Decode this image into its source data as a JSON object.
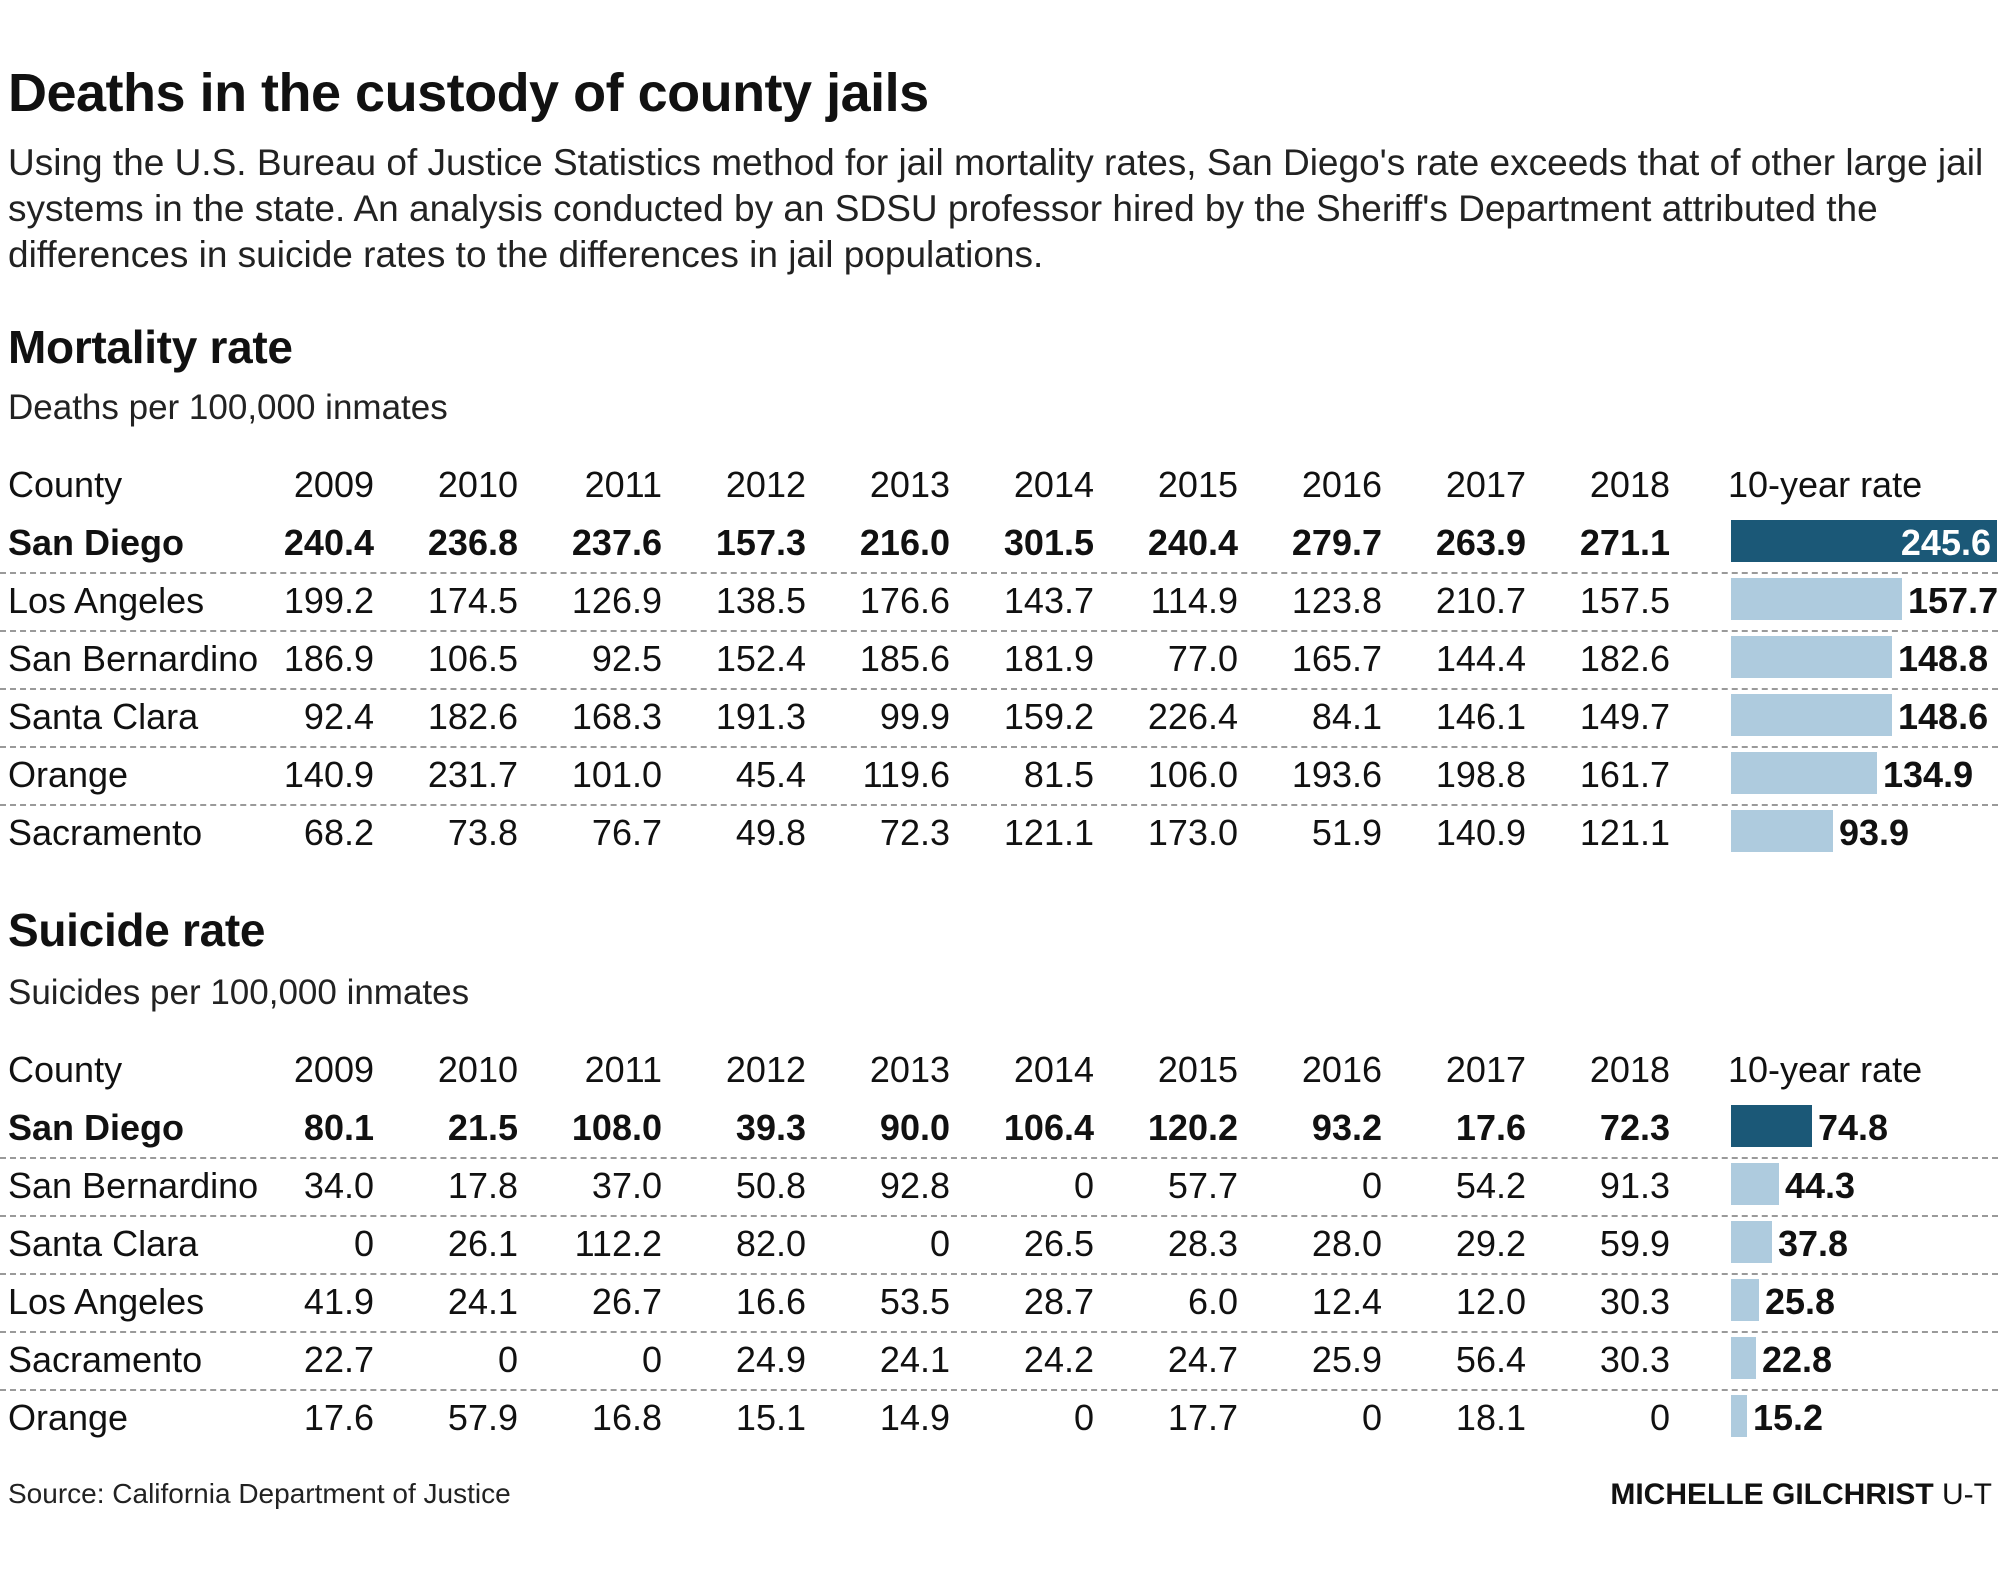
{
  "title": "Deaths in the custody of county jails",
  "intro": "Using the U.S. Bureau of Justice Statistics method for jail mortality rates, San Diego's rate exceeds that of other large jail systems in the state. An analysis conducted by an SDSU professor hired by the Sheriff's Department attributed the differences in suicide rates to the differences in jail populations.",
  "source": "Source: California Department of Justice",
  "credit_name": "MICHELLE GILCHRIST",
  "credit_org": "U-T",
  "colors": {
    "highlight_bar": "#1b5877",
    "other_bar": "#aecbde"
  },
  "chart_data": [
    {
      "type": "table",
      "title": "Mortality rate",
      "subtitle": "Deaths per 100,000 inmates",
      "county_header": "County",
      "years": [
        "2009",
        "2010",
        "2011",
        "2012",
        "2013",
        "2014",
        "2015",
        "2016",
        "2017",
        "2018"
      ],
      "rate_header": "10-year rate",
      "rate_max": 245.6,
      "rows": [
        {
          "county": "San Diego",
          "highlight": true,
          "values": [
            "240.4",
            "236.8",
            "237.6",
            "157.3",
            "216.0",
            "301.5",
            "240.4",
            "279.7",
            "263.9",
            "271.1"
          ],
          "rate": "245.6"
        },
        {
          "county": "Los Angeles",
          "highlight": false,
          "values": [
            "199.2",
            "174.5",
            "126.9",
            "138.5",
            "176.6",
            "143.7",
            "114.9",
            "123.8",
            "210.7",
            "157.5"
          ],
          "rate": "157.7"
        },
        {
          "county": "San Bernardino",
          "highlight": false,
          "values": [
            "186.9",
            "106.5",
            "92.5",
            "152.4",
            "185.6",
            "181.9",
            "77.0",
            "165.7",
            "144.4",
            "182.6"
          ],
          "rate": "148.8"
        },
        {
          "county": "Santa Clara",
          "highlight": false,
          "values": [
            "92.4",
            "182.6",
            "168.3",
            "191.3",
            "99.9",
            "159.2",
            "226.4",
            "84.1",
            "146.1",
            "149.7"
          ],
          "rate": "148.6"
        },
        {
          "county": "Orange",
          "highlight": false,
          "values": [
            "140.9",
            "231.7",
            "101.0",
            "45.4",
            "119.6",
            "81.5",
            "106.0",
            "193.6",
            "198.8",
            "161.7"
          ],
          "rate": "134.9"
        },
        {
          "county": "Sacramento",
          "highlight": false,
          "values": [
            "68.2",
            "73.8",
            "76.7",
            "49.8",
            "72.3",
            "121.1",
            "173.0",
            "51.9",
            "140.9",
            "121.1"
          ],
          "rate": "93.9"
        }
      ]
    },
    {
      "type": "table",
      "title": "Suicide rate",
      "subtitle": "Suicides per 100,000 inmates",
      "county_header": "County",
      "years": [
        "2009",
        "2010",
        "2011",
        "2012",
        "2013",
        "2014",
        "2015",
        "2016",
        "2017",
        "2018"
      ],
      "rate_header": "10-year rate",
      "rate_max": 245.6,
      "rows": [
        {
          "county": "San Diego",
          "highlight": true,
          "values": [
            "80.1",
            "21.5",
            "108.0",
            "39.3",
            "90.0",
            "106.4",
            "120.2",
            "93.2",
            "17.6",
            "72.3"
          ],
          "rate": "74.8"
        },
        {
          "county": "San Bernardino",
          "highlight": false,
          "values": [
            "34.0",
            "17.8",
            "37.0",
            "50.8",
            "92.8",
            "0",
            "57.7",
            "0",
            "54.2",
            "91.3"
          ],
          "rate": "44.3"
        },
        {
          "county": "Santa Clara",
          "highlight": false,
          "values": [
            "0",
            "26.1",
            "112.2",
            "82.0",
            "0",
            "26.5",
            "28.3",
            "28.0",
            "29.2",
            "59.9"
          ],
          "rate": "37.8"
        },
        {
          "county": "Los Angeles",
          "highlight": false,
          "values": [
            "41.9",
            "24.1",
            "26.7",
            "16.6",
            "53.5",
            "28.7",
            "6.0",
            "12.4",
            "12.0",
            "30.3"
          ],
          "rate": "25.8"
        },
        {
          "county": "Sacramento",
          "highlight": false,
          "values": [
            "22.7",
            "0",
            "0",
            "24.9",
            "24.1",
            "24.2",
            "24.7",
            "25.9",
            "56.4",
            "30.3"
          ],
          "rate": "22.8"
        },
        {
          "county": "Orange",
          "highlight": false,
          "values": [
            "17.6",
            "57.9",
            "16.8",
            "15.1",
            "14.9",
            "0",
            "17.7",
            "0",
            "18.1",
            "0"
          ],
          "rate": "15.2"
        }
      ]
    }
  ]
}
